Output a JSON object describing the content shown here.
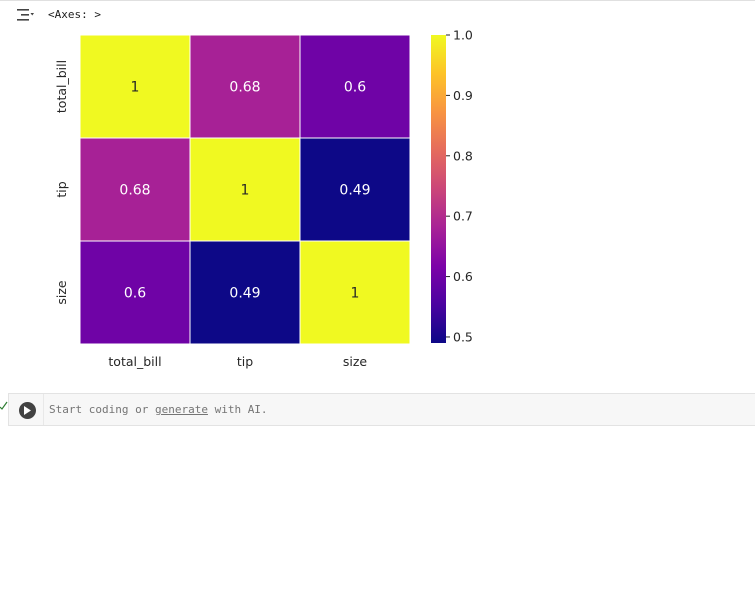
{
  "output": {
    "label": "<Axes: >"
  },
  "cell": {
    "placeholder_prefix": "Start coding or ",
    "placeholder_link": "generate",
    "placeholder_suffix": " with AI."
  },
  "colors": {
    "run_button": "#424242",
    "cell_background": "#f7f7f7"
  },
  "chart_data": {
    "type": "heatmap",
    "colormap": "plasma",
    "x_labels": [
      "total_bill",
      "tip",
      "size"
    ],
    "y_labels": [
      "total_bill",
      "tip",
      "size"
    ],
    "values": [
      [
        1,
        0.68,
        0.6
      ],
      [
        0.68,
        1,
        0.49
      ],
      [
        0.6,
        0.49,
        1
      ]
    ],
    "annotations": [
      [
        "1",
        "0.68",
        "0.6"
      ],
      [
        "0.68",
        "1",
        "0.49"
      ],
      [
        "0.6",
        "0.49",
        "1"
      ]
    ],
    "colorbar": {
      "min": 0.49,
      "max": 1,
      "ticks": [
        1.0,
        0.9,
        0.8,
        0.7,
        0.6,
        0.5
      ],
      "tick_labels": [
        "1.0",
        "0.9",
        "0.8",
        "0.7",
        "0.6",
        "0.5"
      ]
    }
  }
}
